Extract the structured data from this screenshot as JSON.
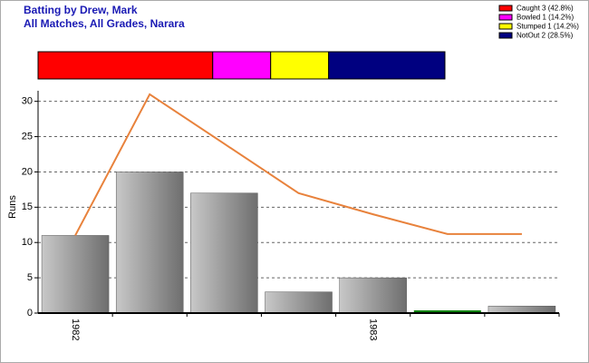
{
  "chart_data": [
    {
      "type": "stacked-strip",
      "series": [
        {
          "name": "Caught 3 (42.8%)",
          "color": "#ff0000",
          "values": [
            42.8
          ]
        },
        {
          "name": "Bowled 1 (14.2%)",
          "color": "#ff00ff",
          "values": [
            14.2
          ]
        },
        {
          "name": "Stumped 1 (14.2%)",
          "color": "#ffff00",
          "values": [
            14.2
          ]
        },
        {
          "name": "NotOut 2 (28.5%)",
          "color": "#000080",
          "values": [
            28.5
          ]
        }
      ]
    },
    {
      "type": "bar-line",
      "title": "Batting by Drew, Mark",
      "subtitle": "All Matches, All Grades, Narara",
      "y_label": "Runs",
      "categories": [
        "1982",
        null,
        null,
        null,
        "1983",
        null,
        null
      ],
      "values": [
        11,
        20,
        17,
        3,
        5,
        0,
        1
      ],
      "bar_colors": [
        "#999999",
        "#999999",
        "#999999",
        "#999999",
        "#999999",
        "#008000",
        "#999999"
      ],
      "line_values": [
        11,
        31,
        24,
        17,
        14,
        11.2,
        11.2
      ],
      "line_color": "#e8823c",
      "ylim": [
        0,
        31.5
      ],
      "yticks": [
        0,
        5,
        10,
        15,
        20,
        25,
        30
      ],
      "grid": true
    }
  ]
}
